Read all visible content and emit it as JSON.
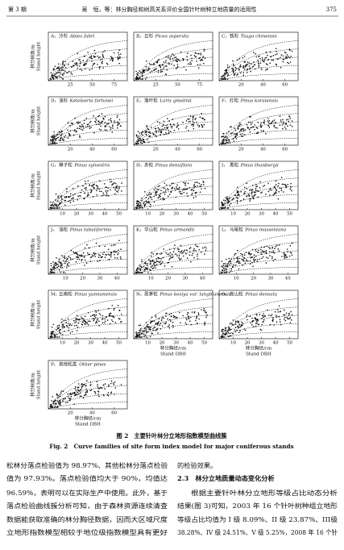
{
  "header": {
    "issue": "第 3 期",
    "title": "吴　恒，等：林分胸径和树高关系评价全国针叶树种立地质量的适用性",
    "page": "375"
  },
  "figure": {
    "y_label_cn": "林分树高/m",
    "y_label_en": "Stand height",
    "x_label_cn": "林分胸径/cm",
    "x_label_en": "Stand DBH",
    "panels": [
      {
        "label": "A₁",
        "cn": "冷杉",
        "latin": "Abies fabri",
        "xticks": [
          "25",
          "50",
          "75"
        ]
      },
      {
        "label": "B₁",
        "cn": "云杉",
        "latin": "Picea asperata",
        "xticks": [
          "25",
          "50",
          "75"
        ]
      },
      {
        "label": "C₁",
        "cn": "铁杉",
        "latin": "Tsuga chinensis",
        "xticks": [
          "20",
          "40",
          "60"
        ]
      },
      {
        "label": "D₁",
        "cn": "油杉",
        "latin": "Keteleeria fortunei",
        "xticks": [
          "20",
          "40",
          "60"
        ]
      },
      {
        "label": "E₁",
        "cn": "落叶松",
        "latin": "Larix gmelinii",
        "xticks": [
          "20",
          "40",
          "60"
        ]
      },
      {
        "label": "F₁",
        "cn": "红松",
        "latin": "Pinus koraiensis",
        "xticks": [
          "20",
          "40",
          "60"
        ]
      },
      {
        "label": "G₁",
        "cn": "樟子松",
        "latin": "Pinus sylvestris",
        "xticks": [
          "10",
          "20",
          "30",
          "40",
          "50"
        ]
      },
      {
        "label": "H₁",
        "cn": "赤松",
        "latin": "Pinus densiflora",
        "xticks": [
          "10",
          "20",
          "30",
          "40",
          "50"
        ]
      },
      {
        "label": "I₁",
        "cn": "黑松",
        "latin": "Pinus thunbergii",
        "xticks": [
          "10",
          "20",
          "30",
          "40",
          "50"
        ]
      },
      {
        "label": "J₁",
        "cn": "油松",
        "latin": "Pinus tabuliformis",
        "xticks": [
          "10",
          "20",
          "30",
          "40"
        ]
      },
      {
        "label": "K₁",
        "cn": "华山松",
        "latin": "Pinus armandii",
        "xticks": [
          "10",
          "20",
          "30",
          "40"
        ]
      },
      {
        "label": "L₁",
        "cn": "马尾松",
        "latin": "Pinus massoniana",
        "xticks": [
          "10",
          "20",
          "30",
          "40"
        ]
      },
      {
        "label": "M₁",
        "cn": "云南松",
        "latin": "Pinus yunnanensis",
        "xticks": [
          "10",
          "20",
          "30",
          "40",
          "50"
        ]
      },
      {
        "label": "N₁",
        "cn": "思茅松",
        "latin": "Pinus kesiya var. langbianensis",
        "xticks": [
          "10",
          "20",
          "30",
          "40",
          "50"
        ]
      },
      {
        "label": "O₁",
        "cn": "高山松",
        "latin": "Pinus densata",
        "xticks": [
          "10",
          "20",
          "30",
          "40",
          "50"
        ]
      },
      {
        "label": "P₁",
        "cn": "其他松类",
        "latin": "Other pines",
        "xticks": [
          "20",
          "40",
          "60"
        ]
      }
    ],
    "caption_cn": "图 2　主要针叶林分立地形指数模型曲线簇",
    "caption_en": "Fig. 2　Curve families of site form index model for major coniferous stands"
  },
  "body": {
    "left": [
      "松林分落点检验值为 98.97%、其他松林分落点检验",
      "值为 97.93%。落点检验值均大于 90%，均值达",
      "96.59%，表明可以在实际生产中使用。此外，基于",
      "落点检验曲线簇分析可知，由于森林资源连续清查",
      "数据能获取准确的林分胸径数据，因而大区域尺度",
      "立地形指数模型相较于地位级指数模型具有更好"
    ],
    "right_first": "的检验效果。",
    "heading": "2.3　林分立地质量动态变化分析",
    "right": [
      "根据主要针叶林分立地形等级占比动态分析",
      "结果(图 3)可知，2003 年 16 个针叶树种组立地形",
      "等级占比均值为 I 级 8.09%、II 级 23.87%、III级",
      "38.28%、IV 级 24.51%、V 级 5.25%，2008 年 16 个针"
    ]
  }
}
